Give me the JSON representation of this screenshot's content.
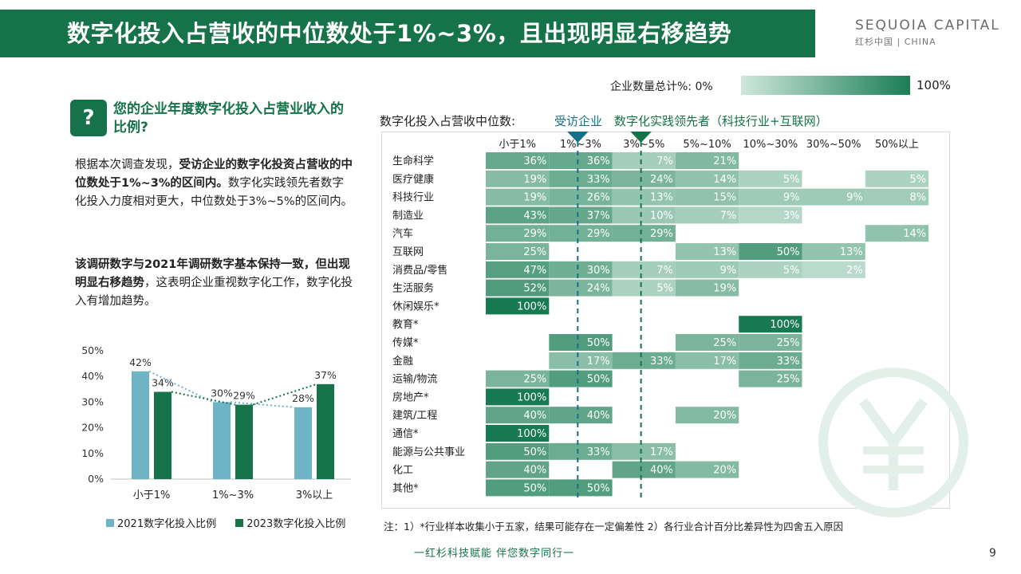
{
  "header": {
    "title": "数字化投入占营收的中位数处于1%~3%，且出现明显右移趋势",
    "brand_name": "SEQUOIA CAPITAL",
    "brand_sub": "红杉中国 | CHINA"
  },
  "legend_scale": {
    "label": "企业数量总计%:  0%",
    "max_label": "100%",
    "color_low": "#cfe7dd",
    "color_high": "#1a7e55"
  },
  "question": {
    "icon": "question-note-icon",
    "icon_text": "?",
    "title": "您的企业年度数字化投入占营业收入的比例?"
  },
  "paragraph1": {
    "text1": "根据本次调查发现，",
    "bold1": "受访企业的数字化投资占营收的中位数处于1%~3%的区间内。",
    "text2": "数字化实践领先者数字化投入力度相对更大，中位数处于3%~5%的区间内。"
  },
  "paragraph2": {
    "bold1": "该调研数字与2021年调研数字基本保持一致，但出现明显右移趋势",
    "text1": "，这表明企业重视数字化工作，数字化投入有增加趋势。"
  },
  "chart_data": [
    {
      "type": "bar",
      "categories": [
        "小于1%",
        "1%~3%",
        "3%以上"
      ],
      "series": [
        {
          "name": "2021数字化投入比例",
          "values": [
            42,
            30,
            28
          ],
          "labels": [
            "42%",
            "30%",
            "28%"
          ],
          "color": "#6fb4c6"
        },
        {
          "name": "2023数字化投入比例",
          "values": [
            34,
            29,
            37
          ],
          "labels": [
            "34%",
            "29%",
            "37%"
          ],
          "color": "#157249"
        }
      ],
      "ylim": [
        0,
        50
      ],
      "yticks": [
        "0%",
        "10%",
        "20%",
        "30%",
        "40%",
        "50%"
      ],
      "grid": false,
      "legend_position": "bottom"
    },
    {
      "type": "heatmap",
      "title": "数字化投入占营收中位数:",
      "legend": [
        "受访企业",
        "数字化实践领先者（科技行业+互联网）"
      ],
      "legend_colors": [
        "#16708a",
        "#157249"
      ],
      "columns": [
        "小于1%",
        "1%~3%",
        "3%~5%",
        "5%~10%",
        "10%~30%",
        "30%~50%",
        "50%以上"
      ],
      "rows": [
        "生命科学",
        "医疗健康",
        "科技行业",
        "制造业",
        "汽车",
        "互联网",
        "消费品/零售",
        "生活服务",
        "休闲娱乐*",
        "教育*",
        "传媒*",
        "金融",
        "运输/物流",
        "房地产*",
        "建筑/工程",
        "通信*",
        "能源与公共事业",
        "化工",
        "其他*"
      ],
      "values": [
        [
          36,
          36,
          7,
          21,
          null,
          null,
          null
        ],
        [
          19,
          33,
          24,
          14,
          5,
          null,
          5
        ],
        [
          19,
          26,
          13,
          15,
          9,
          9,
          8
        ],
        [
          43,
          37,
          10,
          7,
          3,
          null,
          null
        ],
        [
          29,
          29,
          29,
          null,
          null,
          null,
          14
        ],
        [
          25,
          null,
          null,
          13,
          50,
          13,
          null
        ],
        [
          47,
          30,
          7,
          9,
          5,
          2,
          null
        ],
        [
          52,
          24,
          5,
          19,
          null,
          null,
          null
        ],
        [
          100,
          null,
          null,
          null,
          null,
          null,
          null
        ],
        [
          null,
          null,
          null,
          null,
          100,
          null,
          null
        ],
        [
          null,
          50,
          null,
          25,
          25,
          null,
          null
        ],
        [
          null,
          17,
          33,
          17,
          33,
          null,
          null
        ],
        [
          25,
          50,
          null,
          null,
          25,
          null,
          null
        ],
        [
          100,
          null,
          null,
          null,
          null,
          null,
          null
        ],
        [
          40,
          40,
          null,
          20,
          null,
          null,
          null
        ],
        [
          100,
          null,
          null,
          null,
          null,
          null,
          null
        ],
        [
          50,
          33,
          17,
          null,
          null,
          null,
          null
        ],
        [
          40,
          null,
          40,
          20,
          null,
          null,
          null
        ],
        [
          50,
          50,
          null,
          null,
          null,
          null,
          null
        ]
      ],
      "value_suffix": "%",
      "median_markers": [
        {
          "name": "受访企业",
          "column": "1%~3%",
          "color": "#16708a"
        },
        {
          "name": "数字化实践领先者（科技行业+互联网）",
          "column": "3%~5%",
          "color": "#157249"
        }
      ]
    }
  ],
  "footnote": "注：1）*行业样本收集小于五家，结果可能存在一定偏差性 2）各行业合计百分比差异性为四舍五入原因",
  "slogan": "一红杉科技赋能    伴您数字同行一",
  "page_number": "9",
  "decoration": {
    "watermark_icon": "yuan-coin-icon",
    "watermark_color": "#e3efe9"
  }
}
